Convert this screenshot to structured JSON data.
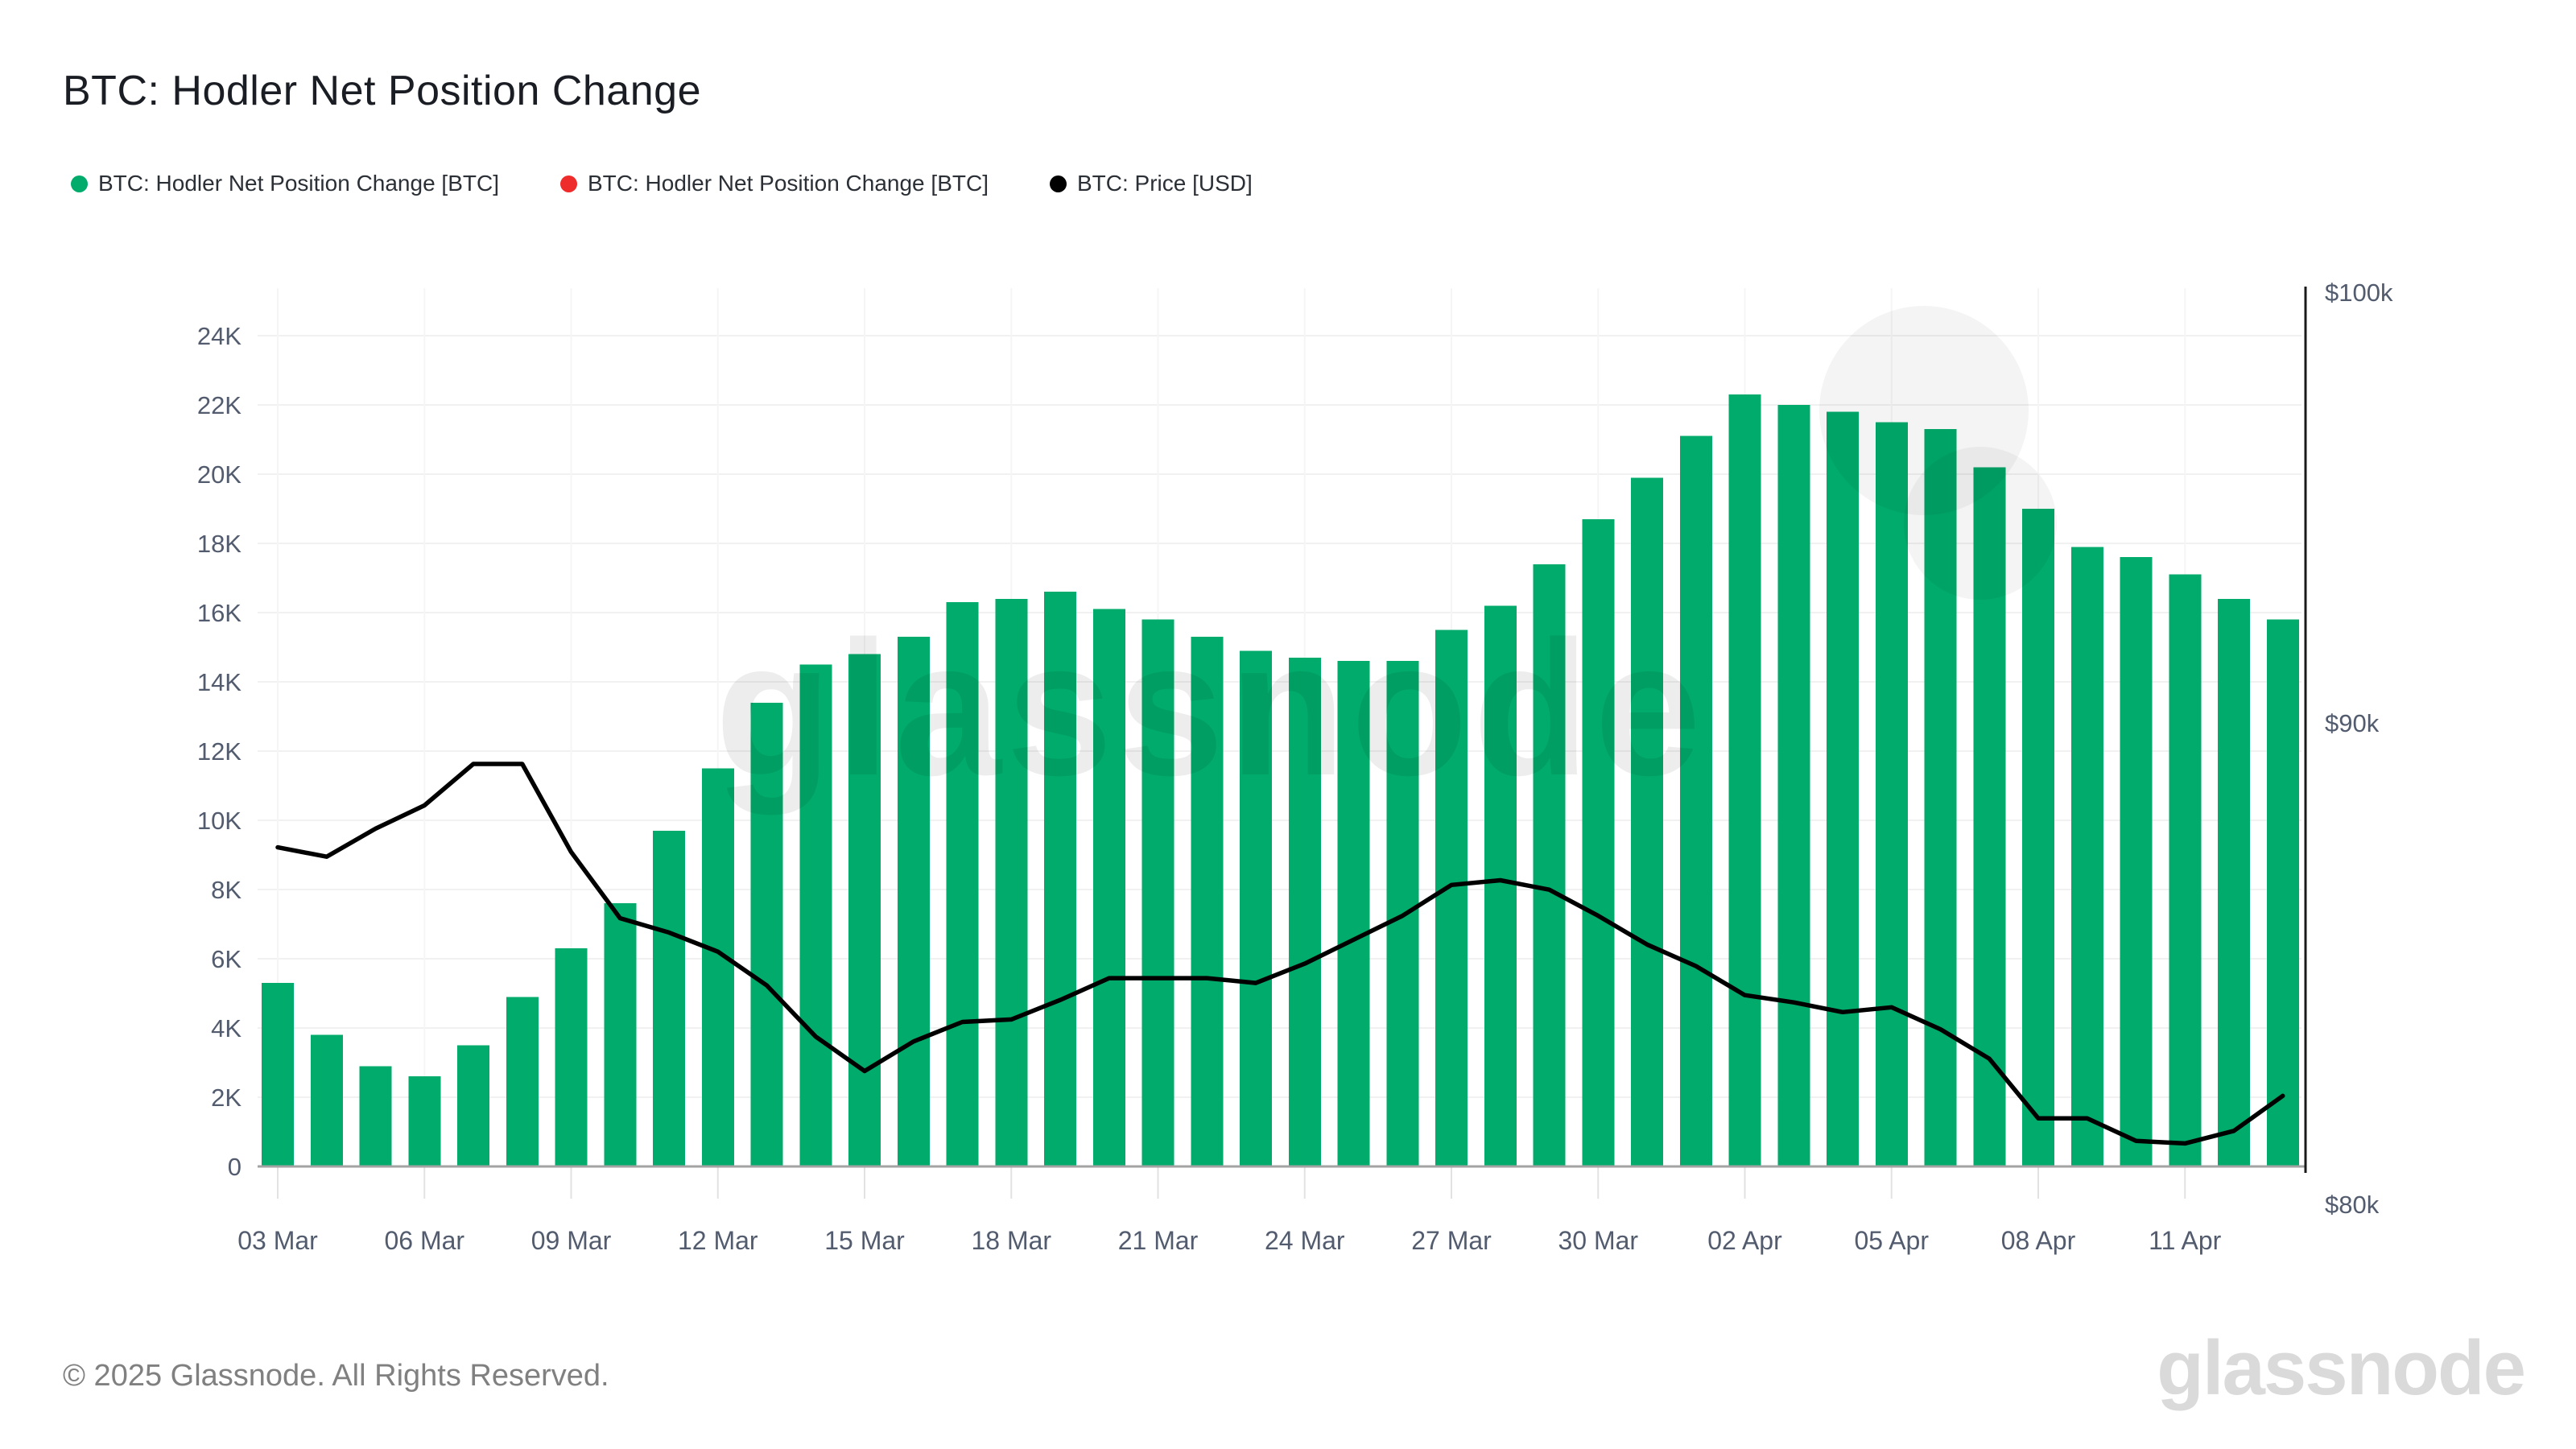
{
  "title": "BTC: Hodler Net Position Change",
  "legend": {
    "items": [
      {
        "label": "BTC: Hodler Net Position Change [BTC]",
        "color": "#00ab6b",
        "marker": "circle"
      },
      {
        "label": "BTC: Hodler Net Position Change [BTC]",
        "color": "#ee2c2c",
        "marker": "circle"
      },
      {
        "label": "BTC: Price [USD]",
        "color": "#000000",
        "marker": "circle"
      }
    ]
  },
  "watermark": "glassnode",
  "footer": {
    "copyright": "© 2025 Glassnode. All Rights Reserved.",
    "logo": "glassnode"
  },
  "colors": {
    "bar_green": "#00ab6b",
    "legend_red": "#ee2c2c",
    "price_line": "#000000",
    "gridline": "#f1f1f1",
    "vertical_gridline": "#f5f5f5",
    "baseline": "#a3a3a3",
    "right_axis_line": "#1a1a1a",
    "tick_mark": "#e2e2e2",
    "axis_text": "#525c6e"
  },
  "chart_data": {
    "type": "bar",
    "title": "BTC: Hodler Net Position Change",
    "categories": [
      "03 Mar",
      "04 Mar",
      "05 Mar",
      "06 Mar",
      "07 Mar",
      "08 Mar",
      "09 Mar",
      "10 Mar",
      "11 Mar",
      "12 Mar",
      "13 Mar",
      "14 Mar",
      "15 Mar",
      "16 Mar",
      "17 Mar",
      "18 Mar",
      "19 Mar",
      "20 Mar",
      "21 Mar",
      "22 Mar",
      "23 Mar",
      "24 Mar",
      "25 Mar",
      "26 Mar",
      "27 Mar",
      "28 Mar",
      "29 Mar",
      "30 Mar",
      "31 Mar",
      "01 Apr",
      "02 Apr",
      "03 Apr",
      "04 Apr",
      "05 Apr",
      "06 Apr",
      "07 Apr",
      "08 Apr",
      "09 Apr",
      "10 Apr",
      "11 Apr",
      "12 Apr",
      "13 Apr"
    ],
    "series": [
      {
        "name": "BTC: Hodler Net Position Change [BTC]",
        "type": "bar",
        "color": "#00ab6b",
        "yaxis": "left",
        "values": [
          5300,
          3800,
          2900,
          2600,
          3500,
          4900,
          6300,
          7600,
          9700,
          11500,
          13400,
          14500,
          14800,
          15300,
          16300,
          16400,
          16600,
          16100,
          15800,
          15300,
          14900,
          14700,
          14600,
          14600,
          15500,
          16200,
          17400,
          18700,
          19900,
          21100,
          22300,
          22000,
          21800,
          21500,
          21300,
          20200,
          19000,
          17900,
          17600,
          17100,
          16400,
          15800
        ]
      },
      {
        "name": "BTC: Hodler Net Position Change [BTC]",
        "type": "bar",
        "color": "#ee2c2c",
        "yaxis": "left",
        "values": []
      },
      {
        "name": "BTC: Price [USD]",
        "type": "line",
        "color": "#000000",
        "yaxis": "right",
        "values": [
          87300,
          87100,
          87700,
          88200,
          89100,
          89100,
          87200,
          85800,
          85500,
          85100,
          84400,
          83350,
          82650,
          83250,
          83650,
          83700,
          84100,
          84550,
          84550,
          84550,
          84450,
          84850,
          85350,
          85850,
          86500,
          86600,
          86400,
          85850,
          85250,
          84800,
          84200,
          84050,
          83850,
          83950,
          83500,
          82900,
          81700,
          81700,
          81250,
          81200,
          81450,
          82150
        ]
      }
    ],
    "left_axis": {
      "min": 0,
      "max": 24000,
      "step": 2000,
      "tick_labels": [
        "0",
        "2K",
        "4K",
        "6K",
        "8K",
        "10K",
        "12K",
        "14K",
        "16K",
        "18K",
        "20K",
        "22K",
        "24K"
      ],
      "grid": true
    },
    "right_axis": {
      "scale": "log",
      "ticks": [
        {
          "label": "$100k",
          "value": 100000
        },
        {
          "label": "$90k",
          "value": 90000
        },
        {
          "label": "$80k",
          "value": 80000
        }
      ]
    },
    "x_axis": {
      "tick_every": 3,
      "tick_labels": [
        "03 Mar",
        "06 Mar",
        "09 Mar",
        "12 Mar",
        "15 Mar",
        "18 Mar",
        "21 Mar",
        "24 Mar",
        "27 Mar",
        "30 Mar",
        "02 Apr",
        "05 Apr",
        "08 Apr",
        "11 Apr"
      ]
    },
    "legend_position": "top-left",
    "grid": true
  }
}
